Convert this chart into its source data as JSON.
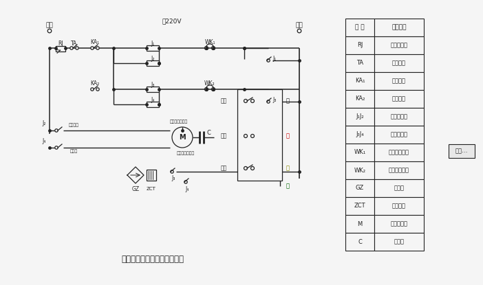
{
  "title": "单相电动卷帘门机电气原理图",
  "bg_color": "#f5f5f5",
  "line_color": "#222222",
  "table_headers": [
    "符 号",
    "电器名称"
  ],
  "table_rows": [
    [
      "RJ",
      "过热保护器"
    ],
    [
      "TA",
      "停止按鈕"
    ],
    [
      "KA₁",
      "上升按鈕"
    ],
    [
      "KA₂",
      "下降按鈕"
    ],
    [
      "J₁J₂",
      "上升继电器"
    ],
    [
      "J₃J₄",
      "下降继电器"
    ],
    [
      "WK₁",
      "上升限位开关"
    ],
    [
      "WK₂",
      "下降限位开关"
    ],
    [
      "GZ",
      "整流器"
    ],
    [
      "ZCT",
      "电磁线圈"
    ],
    [
      "M",
      "单相电动机"
    ],
    [
      "C",
      "电容器"
    ]
  ],
  "zero_label": "零线",
  "fire_label": "火线",
  "voltage_label": "～220V",
  "up_label": "上升",
  "stop_label": "停止",
  "down_label": "下降",
  "white_label": "白",
  "red_label": "红",
  "yellow_label": "黄",
  "green_label": "绿",
  "click_label": "点击…",
  "motor_black": "电机黑色引出线",
  "motor_yellow": "电机黄色",
  "motor_lead": "引出线",
  "motor_red": "电机红色引出线"
}
